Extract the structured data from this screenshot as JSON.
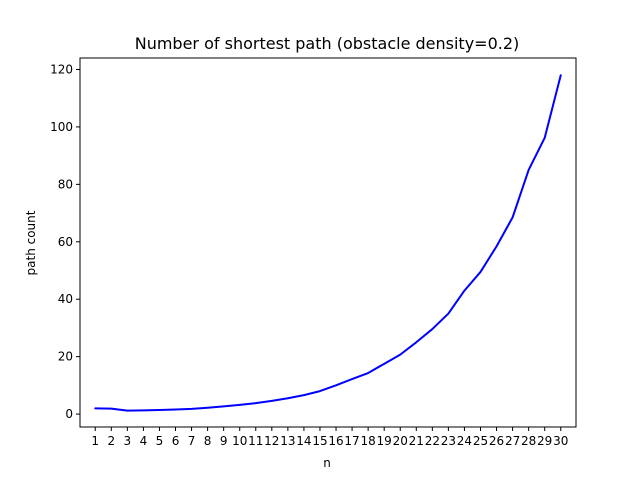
{
  "chart_data": {
    "type": "line",
    "title": "Number of shortest path (obstacle density=0.2)",
    "xlabel": "n",
    "ylabel": "path count",
    "x": [
      1,
      2,
      3,
      4,
      5,
      6,
      7,
      8,
      9,
      10,
      11,
      12,
      13,
      14,
      15,
      16,
      17,
      18,
      19,
      20,
      21,
      22,
      23,
      24,
      25,
      26,
      27,
      28,
      29,
      30
    ],
    "x_tick_labels": [
      "1",
      "2",
      "3",
      "4",
      "5",
      "6",
      "7",
      "8",
      "9",
      "10",
      "11",
      "12",
      "13",
      "14",
      "15",
      "16",
      "17",
      "18",
      "19",
      "20",
      "21",
      "22",
      "23",
      "24",
      "25",
      "26",
      "27",
      "28",
      "29",
      "30"
    ],
    "y_ticks": [
      0,
      20,
      40,
      60,
      80,
      100,
      120
    ],
    "y_tick_labels": [
      "0",
      "20",
      "40",
      "60",
      "80",
      "100",
      "120"
    ],
    "ylim": [
      -4.5,
      124
    ],
    "xlim": [
      0.05,
      30.95
    ],
    "grid": false,
    "series": [
      {
        "color": "#0000ff",
        "values": [
          2.0,
          1.9,
          1.2,
          1.3,
          1.4,
          1.6,
          1.8,
          2.2,
          2.7,
          3.2,
          3.8,
          4.6,
          5.5,
          6.6,
          8.0,
          10.0,
          12.2,
          14.3,
          17.5,
          20.7,
          25.0,
          29.6,
          35.0,
          43.0,
          49.5,
          58.4,
          68.5,
          85.0,
          96.2,
          118.0
        ]
      }
    ]
  }
}
